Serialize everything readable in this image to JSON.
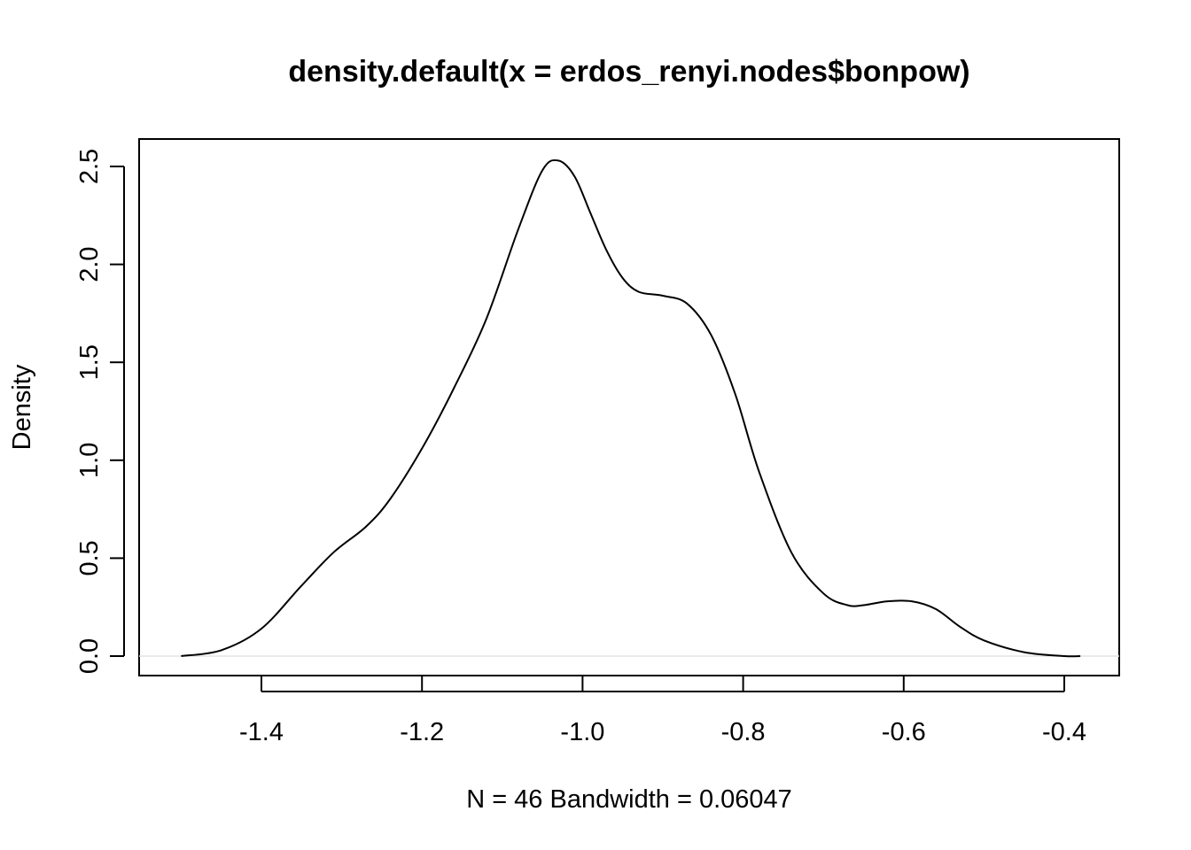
{
  "chart_data": {
    "type": "line",
    "title": "density.default(x = erdos_renyi.nodes$bonpow)",
    "xlabel": "N = 46   Bandwidth = 0.06047",
    "ylabel": "Density",
    "xlim": [
      -1.5,
      -0.38
    ],
    "ylim": [
      0,
      2.5
    ],
    "x_ticks": [
      -1.4,
      -1.2,
      -1.0,
      -0.8,
      -0.6,
      -0.4
    ],
    "x_tick_labels": [
      "-1.4",
      "-1.2",
      "-1.0",
      "-0.8",
      "-0.6",
      "-0.4"
    ],
    "y_ticks": [
      0.0,
      0.5,
      1.0,
      1.5,
      2.0,
      2.5
    ],
    "y_tick_labels": [
      "0.0",
      "0.5",
      "1.0",
      "1.5",
      "2.0",
      "2.5"
    ],
    "zero_line": true,
    "grid": false,
    "series": [
      {
        "color": "#000000",
        "x": [
          -1.5,
          -1.45,
          -1.4,
          -1.35,
          -1.31,
          -1.27,
          -1.24,
          -1.2,
          -1.16,
          -1.12,
          -1.08,
          -1.05,
          -1.03,
          -1.01,
          -0.99,
          -0.97,
          -0.95,
          -0.93,
          -0.9,
          -0.87,
          -0.84,
          -0.81,
          -0.78,
          -0.74,
          -0.7,
          -0.67,
          -0.65,
          -0.62,
          -0.59,
          -0.56,
          -0.53,
          -0.5,
          -0.45,
          -0.4,
          -0.38
        ],
        "y": [
          0.0,
          0.03,
          0.14,
          0.36,
          0.53,
          0.66,
          0.8,
          1.06,
          1.37,
          1.72,
          2.18,
          2.48,
          2.53,
          2.45,
          2.26,
          2.07,
          1.93,
          1.86,
          1.84,
          1.8,
          1.64,
          1.34,
          0.94,
          0.53,
          0.32,
          0.26,
          0.26,
          0.28,
          0.28,
          0.24,
          0.15,
          0.08,
          0.02,
          0.0,
          0.0
        ]
      }
    ]
  }
}
